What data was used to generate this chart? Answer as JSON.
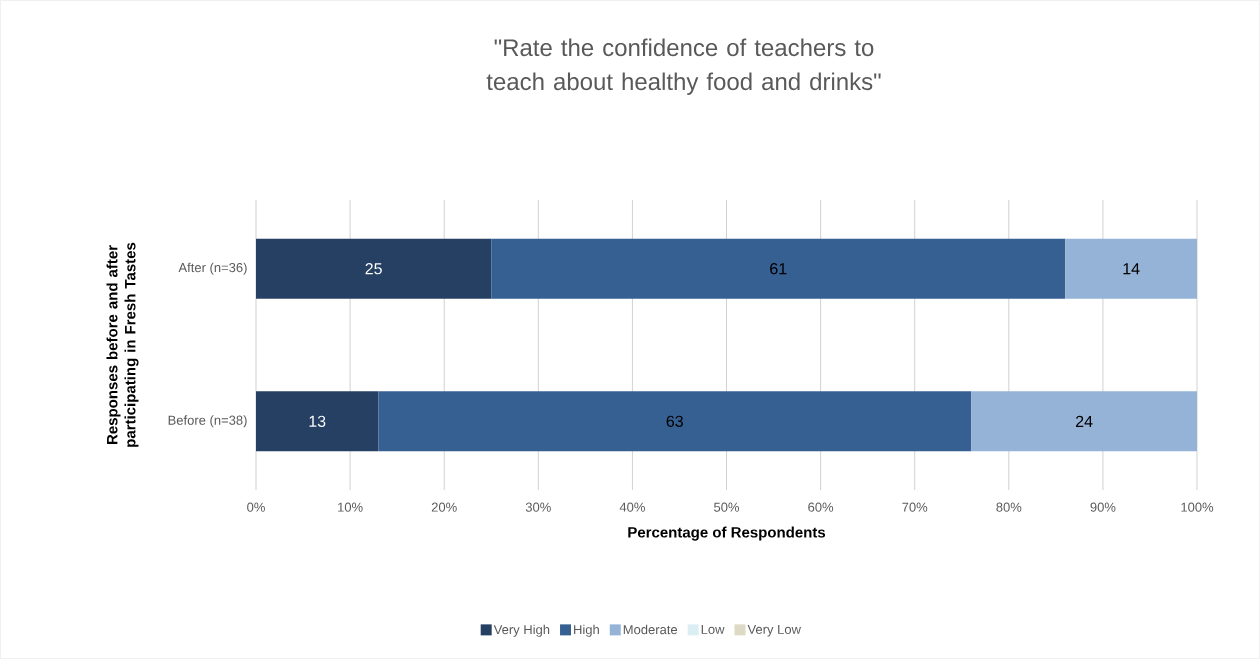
{
  "chart_data": {
    "type": "bar",
    "orientation": "horizontal",
    "stacked": true,
    "title": "\"Rate the confidence of teachers to teach about healthy food and drinks\"",
    "xlabel": "Percentage of Respondents",
    "ylabel": "Responses before and after participating in Fresh Tastes",
    "categories": [
      "After (n=36)",
      "Before (n=38)"
    ],
    "series": [
      {
        "name": "Very High",
        "color": "#264064",
        "values": [
          25,
          13
        ],
        "value_labels": [
          "25",
          "13"
        ]
      },
      {
        "name": "High",
        "color": "#366092",
        "values": [
          61,
          63
        ],
        "value_labels": [
          "61",
          "63"
        ]
      },
      {
        "name": "Moderate",
        "color": "#95b3d7",
        "values": [
          14,
          24
        ],
        "value_labels": [
          "14",
          "24"
        ]
      },
      {
        "name": "Low",
        "color": "#dbeef4",
        "values": [
          null,
          null
        ]
      },
      {
        "name": "Very Low",
        "color": "#ddd9c4",
        "values": [
          null,
          null
        ]
      }
    ],
    "xlim": [
      0,
      100
    ],
    "xticks": [
      {
        "value": 0,
        "label": "0%"
      },
      {
        "value": 10,
        "label": "10%"
      },
      {
        "value": 20,
        "label": "20%"
      },
      {
        "value": 30,
        "label": "30%"
      },
      {
        "value": 40,
        "label": "40%"
      },
      {
        "value": 50,
        "label": "50%"
      },
      {
        "value": 60,
        "label": "60%"
      },
      {
        "value": 70,
        "label": "70%"
      },
      {
        "value": 80,
        "label": "80%"
      },
      {
        "value": 90,
        "label": "90%"
      },
      {
        "value": 100,
        "label": "100%"
      }
    ],
    "grid": "x",
    "legend": "bottom"
  }
}
